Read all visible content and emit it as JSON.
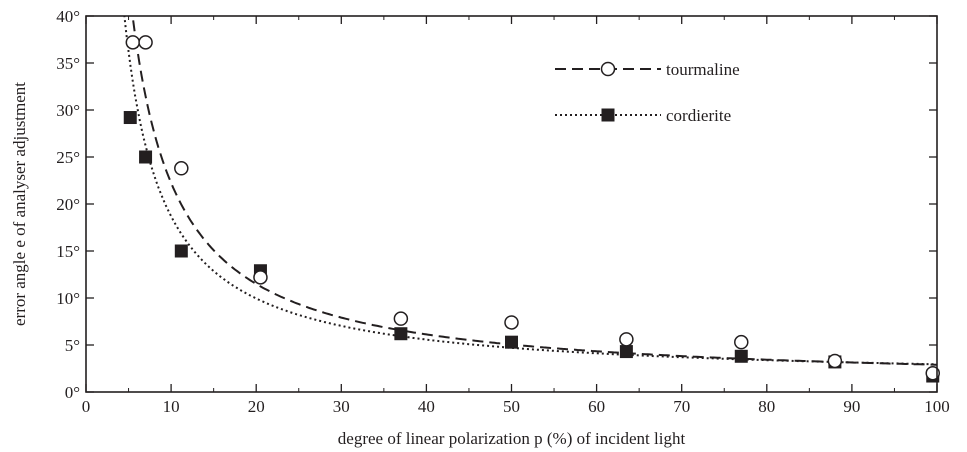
{
  "chart_data": {
    "type": "scatter",
    "xlabel": "degree of linear polarization p (%) of incident light",
    "ylabel": "error angle e of analyser adjustment",
    "xlim": [
      0,
      100
    ],
    "ylim": [
      0,
      40
    ],
    "x_ticks": [
      "0",
      "10",
      "20",
      "30",
      "40",
      "50",
      "60",
      "70",
      "80",
      "90",
      "100"
    ],
    "y_ticks": [
      "0°",
      "5°",
      "10°",
      "15°",
      "20°",
      "25°",
      "30°",
      "35°",
      "40°"
    ],
    "grid": false,
    "legend_position": "top-right",
    "series": [
      {
        "name": "tourmaline",
        "marker": "open-circle",
        "line": "dashed",
        "color": "#231f20",
        "points": [
          [
            5.5,
            37.2
          ],
          [
            7.0,
            37.2
          ],
          [
            11.2,
            23.8
          ],
          [
            20.5,
            12.2
          ],
          [
            37.0,
            7.8
          ],
          [
            50.0,
            7.4
          ],
          [
            63.5,
            5.6
          ],
          [
            77.0,
            5.3
          ],
          [
            88.0,
            3.3
          ],
          [
            99.5,
            2.0
          ]
        ],
        "fit": {
          "k": 215,
          "c": 0.75
        }
      },
      {
        "name": "cordierite",
        "marker": "filled-square",
        "line": "dotted",
        "color": "#231f20",
        "points": [
          [
            5.2,
            29.2
          ],
          [
            7.0,
            25.0
          ],
          [
            11.2,
            15.0
          ],
          [
            20.5,
            12.9
          ],
          [
            37.0,
            6.2
          ],
          [
            50.0,
            5.3
          ],
          [
            63.5,
            4.3
          ],
          [
            77.0,
            3.8
          ],
          [
            88.0,
            3.2
          ],
          [
            99.5,
            1.7
          ]
        ],
        "fit": {
          "k": 175,
          "c": 1.2
        }
      }
    ]
  }
}
